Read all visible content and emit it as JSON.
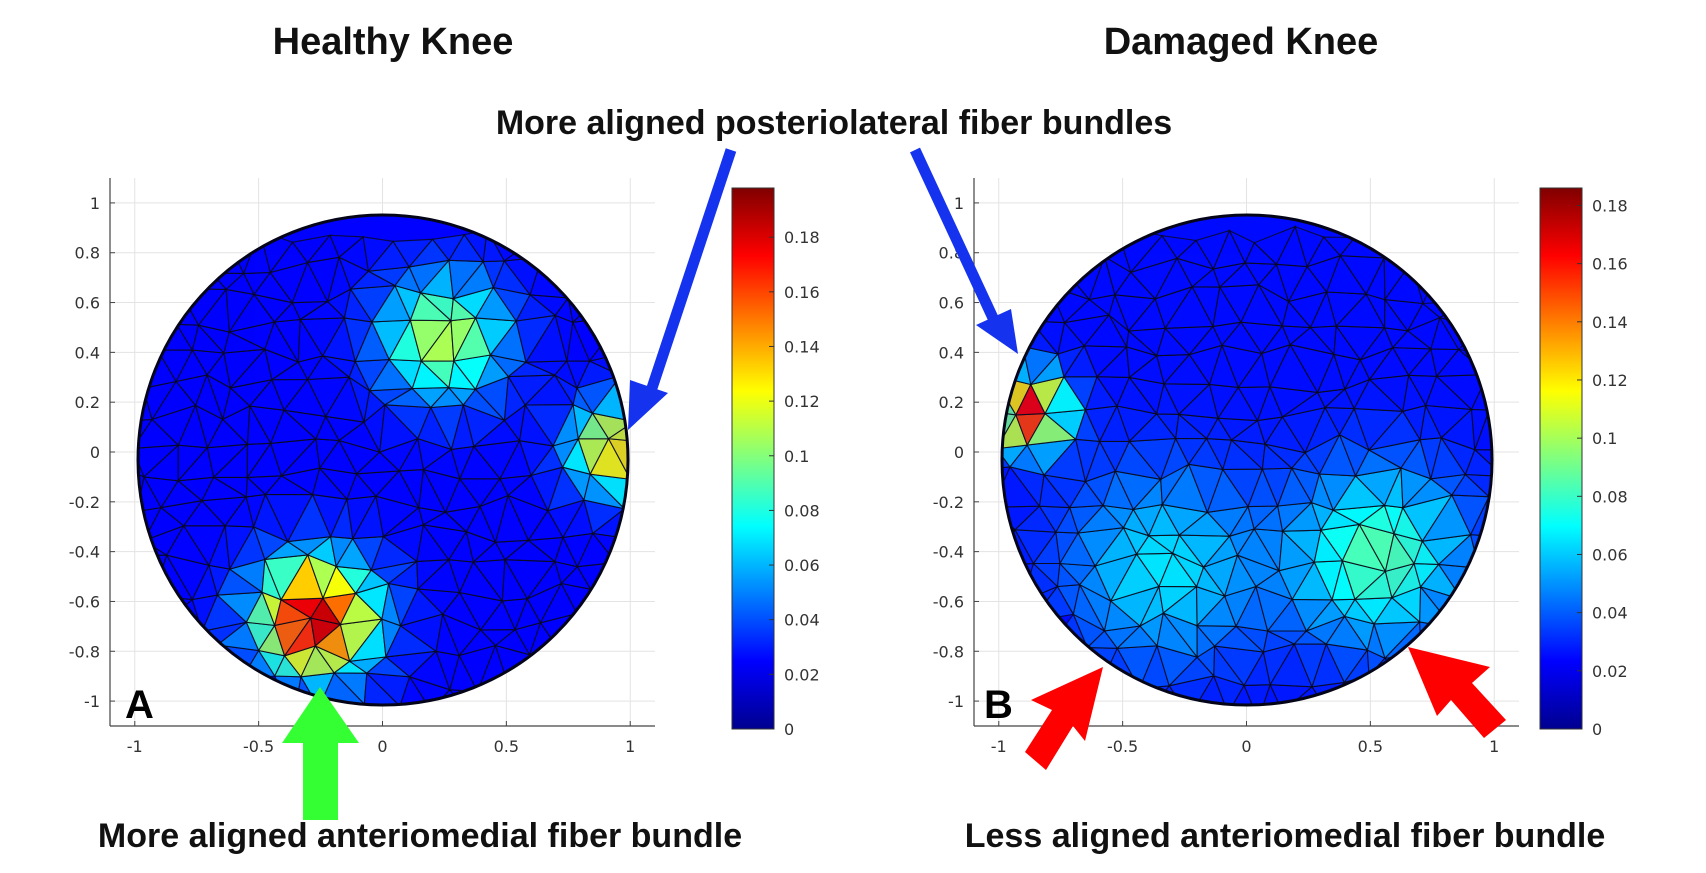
{
  "titles": {
    "left": "Healthy Knee",
    "right": "Damaged Knee"
  },
  "annotations": {
    "top": "More aligned posteriolateral fiber bundles",
    "bottom_left": "More aligned anteriomedial fiber bundle",
    "bottom_right": "Less aligned anteriomedial fiber bundle"
  },
  "arrow_colors": {
    "posteriolateral": "#1533ee",
    "healthy_anteriomedial": "#33ff33",
    "damaged_anteriomedial": "#ff0000"
  },
  "chart_data": [
    {
      "type": "heatmap",
      "panel_label": "A",
      "title": "Healthy Knee",
      "xlabel": "",
      "ylabel": "",
      "xlim": [
        -1.1,
        1.1
      ],
      "ylim": [
        -1.1,
        1.1
      ],
      "x_ticks": [
        -1,
        -0.5,
        0,
        0.5,
        1
      ],
      "x_tick_labels": [
        "-1",
        "-0.5",
        "0",
        "0.5",
        "1"
      ],
      "y_ticks": [
        1,
        0.8,
        0.6,
        0.4,
        0.2,
        0,
        -0.2,
        -0.4,
        -0.6,
        -0.8,
        -1
      ],
      "y_tick_labels": [
        "1",
        "0.8",
        "0.6",
        "0.4",
        "0.2",
        "0",
        "-0.2",
        "-0.4",
        "-0.6",
        "-0.8",
        "-1"
      ],
      "grid": true,
      "colorbar": {
        "range": [
          0,
          0.198
        ],
        "ticks": [
          0,
          0.02,
          0.04,
          0.06,
          0.08,
          0.1,
          0.12,
          0.14,
          0.16,
          0.18
        ],
        "tick_labels": [
          "0",
          "0.02",
          "0.04",
          "0.06",
          "0.08",
          "0.1",
          "0.12",
          "0.14",
          "0.16",
          "0.18"
        ],
        "colormap": "jet"
      },
      "background_value": 0.025,
      "hotspots": [
        {
          "x": 0.25,
          "y": 0.5,
          "value": 0.11,
          "radius": 0.27
        },
        {
          "x": 0.95,
          "y": 0.05,
          "value": 0.14,
          "radius": 0.2
        },
        {
          "x": -0.28,
          "y": -0.65,
          "value": 0.19,
          "radius": 0.26
        }
      ]
    },
    {
      "type": "heatmap",
      "panel_label": "B",
      "title": "Damaged Knee",
      "xlabel": "",
      "ylabel": "",
      "xlim": [
        -1.1,
        1.1
      ],
      "ylim": [
        -1.1,
        1.1
      ],
      "x_ticks": [
        -1,
        -0.5,
        0,
        0.5,
        1
      ],
      "x_tick_labels": [
        "-1",
        "-0.5",
        "0",
        "0.5",
        "1"
      ],
      "y_ticks": [
        1,
        0.8,
        0.6,
        0.4,
        0.2,
        0,
        -0.2,
        -0.4,
        -0.6,
        -0.8,
        -1
      ],
      "y_tick_labels": [
        "1",
        "0.8",
        "0.6",
        "0.4",
        "0.2",
        "0",
        "-0.2",
        "-0.4",
        "-0.6",
        "-0.8",
        "-1"
      ],
      "grid": true,
      "colorbar": {
        "range": [
          0,
          0.186
        ],
        "ticks": [
          0,
          0.02,
          0.04,
          0.06,
          0.08,
          0.1,
          0.12,
          0.14,
          0.16,
          0.18
        ],
        "tick_labels": [
          "0",
          "0.02",
          "0.04",
          "0.06",
          "0.08",
          "0.1",
          "0.12",
          "0.14",
          "0.16",
          "0.18"
        ],
        "colormap": "jet"
      },
      "background_value": 0.025,
      "hotspots": [
        {
          "x": -0.9,
          "y": 0.2,
          "value": 0.17,
          "radius": 0.17
        },
        {
          "x": -0.35,
          "y": -0.45,
          "value": 0.065,
          "radius": 0.45
        },
        {
          "x": 0.55,
          "y": -0.4,
          "value": 0.085,
          "radius": 0.4
        }
      ]
    }
  ]
}
